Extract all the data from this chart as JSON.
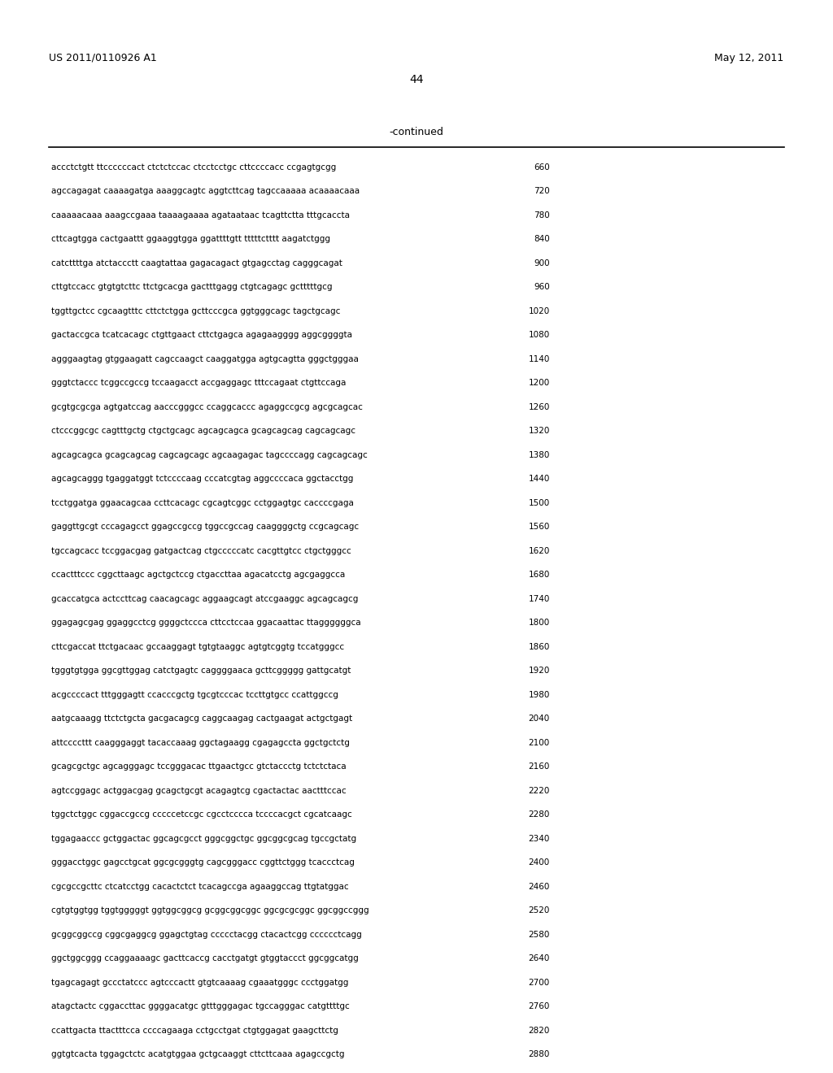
{
  "header_left": "US 2011/0110926 A1",
  "header_right": "May 12, 2011",
  "page_number": "44",
  "continued_label": "-continued",
  "sequence_lines": [
    [
      "accctctgtt ttccccccact ctctctccac ctcctcctgc cttccccacc ccgagtgcgg",
      660
    ],
    [
      "agccagagat caaaagatga aaaggcagtc aggtcttcag tagccaaaaa acaaaacaaa",
      720
    ],
    [
      "caaaaacaaa aaagccgaaa taaaagaaaa agataataac tcagttctta tttgcaccta",
      780
    ],
    [
      "cttcagtgga cactgaattt ggaaggtgga ggattttgtt tttttctttt aagatctggg",
      840
    ],
    [
      "catcttttga atctaccctt caagtattaa gagacagact gtgagcctag cagggcagat",
      900
    ],
    [
      "cttgtccacc gtgtgtcttc ttctgcacga gactttgagg ctgtcagagc gctttttgcg",
      960
    ],
    [
      "tggttgctcc cgcaagtttc cttctctgga gcttcccgca ggtgggcagc tagctgcagc",
      1020
    ],
    [
      "gactaccgca tcatcacagc ctgttgaact cttctgagca agagaagggg aggcggggta",
      1080
    ],
    [
      "agggaagtag gtggaagatt cagccaagct caaggatgga agtgcagtta gggctgggaa",
      1140
    ],
    [
      "gggtctaccc tcggccgccg tccaagacct accgaggagc tttccagaat ctgttccaga",
      1200
    ],
    [
      "gcgtgcgcga agtgatccag aacccgggcc ccaggcaccc agaggccgcg agcgcagcac",
      1260
    ],
    [
      "ctcccggcgc cagtttgctg ctgctgcagc agcagcagca gcagcagcag cagcagcagc",
      1320
    ],
    [
      "agcagcagca gcagcagcag cagcagcagc agcaagagac tagccccagg cagcagcagc",
      1380
    ],
    [
      "agcagcaggg tgaggatggt tctccccaag cccatcgtag aggccccaca ggctacctgg",
      1440
    ],
    [
      "tcctggatga ggaacagcaa ccttcacagc cgcagtcggc cctggagtgc caccccgaga",
      1500
    ],
    [
      "gaggttgcgt cccagagcct ggagccgccg tggccgccag caaggggctg ccgcagcagc",
      1560
    ],
    [
      "tgccagcacc tccggacgag gatgactcag ctgcccccatc cacgttgtcc ctgctgggcc",
      1620
    ],
    [
      "ccactttccc cggcttaagc agctgctccg ctgaccttaa agacatcctg agcgaggcca",
      1680
    ],
    [
      "gcaccatgca actccttcag caacagcagc aggaagcagt atccgaaggc agcagcagcg",
      1740
    ],
    [
      "ggagagcgag ggaggcctcg ggggctccca cttcctccaa ggacaattac ttaggggggca",
      1800
    ],
    [
      "cttcgaccat ttctgacaac gccaaggagt tgtgtaaggc agtgtcggtg tccatgggcc",
      1860
    ],
    [
      "tgggtgtgga ggcgttggag catctgagtc caggggaaca gcttcggggg gattgcatgt",
      1920
    ],
    [
      "acgccccact tttgggagtt ccacccgctg tgcgtcccac tccttgtgcc ccattggccg",
      1980
    ],
    [
      "aatgcaaagg ttctctgcta gacgacagcg caggcaagag cactgaagat actgctgagt",
      2040
    ],
    [
      "attccccttt caagggaggt tacaccaaag ggctagaagg cgagagccta ggctgctctg",
      2100
    ],
    [
      "gcagcgctgc agcagggagc tccgggacac ttgaactgcc gtctaccctg tctctctaca",
      2160
    ],
    [
      "agtccggagc actggacgag gcagctgcgt acagagtcg cgactactac aactttccac",
      2220
    ],
    [
      "tggctctggc cggaccgccg cccccetccgc cgcctcccca tccccacgct cgcatcaagc",
      2280
    ],
    [
      "tggagaaccc gctggactac ggcagcgcct gggcggctgc ggcggcgcag tgccgctatg",
      2340
    ],
    [
      "gggacctggc gagcctgcat ggcgcgggtg cagcgggacc cggttctggg tcaccctcag",
      2400
    ],
    [
      "cgcgccgcttc ctcatcctgg cacactctct tcacagccga agaaggccag ttgtatggac",
      2460
    ],
    [
      "cgtgtggtgg tggtgggggt ggtggcggcg gcggcggcggc ggcgcgcggc ggcggccggg",
      2520
    ],
    [
      "gcggcggccg cggcgaggcg ggagctgtag ccccctacgg ctacactcgg cccccctcagg",
      2580
    ],
    [
      "ggctggcggg ccaggaaaagc gacttcaccg cacctgatgt gtggtaccct ggcggcatgg",
      2640
    ],
    [
      "tgagcagagt gccctatccc agtcccactt gtgtcaaaag cgaaatgggc ccctggatgg",
      2700
    ],
    [
      "atagctactc cggaccttac ggggacatgc gtttgggagac tgccagggac catgttttgc",
      2760
    ],
    [
      "ccattgacta ttactttcca ccccagaaga cctgcctgat ctgtggagat gaagcttctg",
      2820
    ],
    [
      "ggtgtcacta tggagctctc acatgtggaa gctgcaaggt cttcttcaaa agagccgctg",
      2880
    ]
  ]
}
